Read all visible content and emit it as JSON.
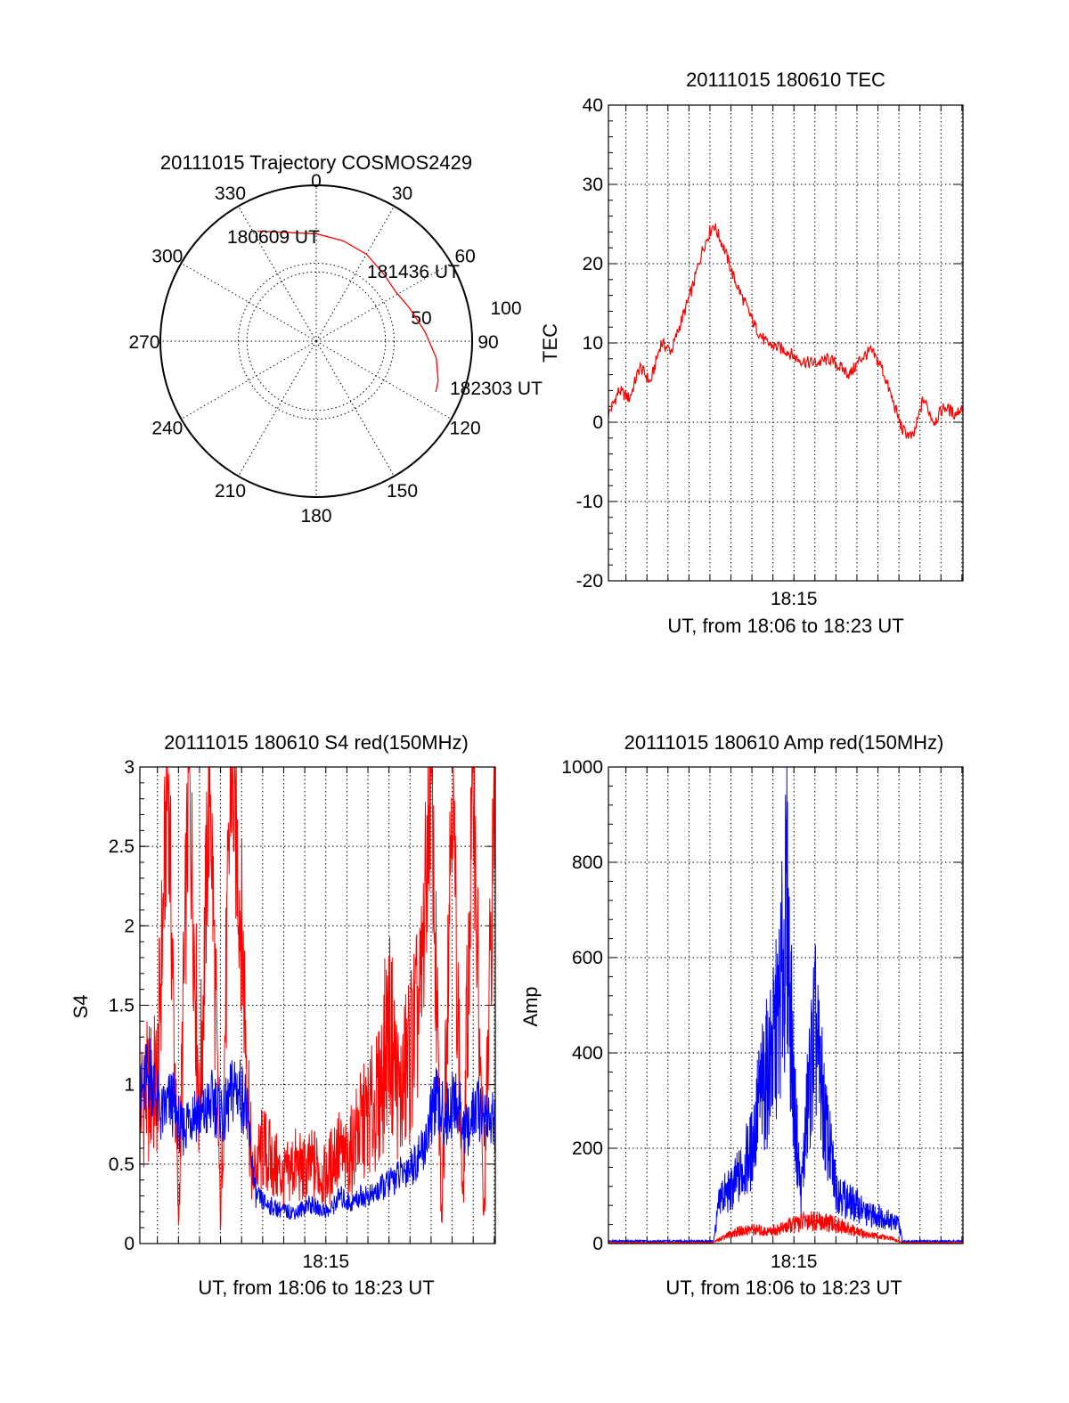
{
  "chart_data": [
    {
      "id": "trajectory",
      "type": "polar",
      "title": "20111015 Trajectory COSMOS2429",
      "azimuth_labels": [
        "0",
        "30",
        "60",
        "90",
        "120",
        "150",
        "180",
        "210",
        "240",
        "270",
        "300",
        "330"
      ],
      "radial_labels": [
        "50",
        "100"
      ],
      "elevation_rings": [
        50
      ],
      "trajectory_color": "#ff0000",
      "annotations": [
        {
          "text": "180609 UT",
          "az": 330,
          "el": 20
        },
        {
          "text": "181436 UT",
          "az": 45,
          "el": 38
        },
        {
          "text": "182303 UT",
          "az": 112,
          "el": 15
        }
      ],
      "trajectory": [
        [
          332,
          18
        ],
        [
          345,
          25
        ],
        [
          0,
          28
        ],
        [
          15,
          30
        ],
        [
          30,
          32
        ],
        [
          45,
          35
        ],
        [
          58,
          36
        ],
        [
          70,
          33
        ],
        [
          85,
          27
        ],
        [
          98,
          20
        ],
        [
          108,
          16
        ],
        [
          113,
          15
        ]
      ]
    },
    {
      "id": "tec",
      "type": "line",
      "title": "20111015 180610 TEC",
      "xlabel": "UT, from 18:06 to 18:23 UT",
      "ylabel": "TEC",
      "xlim": [
        "18:06:10",
        "18:23:03"
      ],
      "ylim": [
        -20,
        40
      ],
      "yticks": [
        "-20",
        "-10",
        "0",
        "10",
        "20",
        "30",
        "40"
      ],
      "xtick_labels": [
        {
          "t": "18:15:00",
          "label": "18:15"
        }
      ],
      "series": [
        {
          "color": "#ff0000",
          "x": [
            "18:06:10",
            "18:06:40",
            "18:07:10",
            "18:07:40",
            "18:08:10",
            "18:08:40",
            "18:09:10",
            "18:09:40",
            "18:10:10",
            "18:10:40",
            "18:11:10",
            "18:11:40",
            "18:12:10",
            "18:12:40",
            "18:13:10",
            "18:13:40",
            "18:14:10",
            "18:14:40",
            "18:15:10",
            "18:15:40",
            "18:16:10",
            "18:16:40",
            "18:17:10",
            "18:17:40",
            "18:18:10",
            "18:18:40",
            "18:19:10",
            "18:19:40",
            "18:20:10",
            "18:20:40",
            "18:21:10",
            "18:21:40",
            "18:22:10",
            "18:22:40",
            "18:23:03"
          ],
          "y": [
            1,
            4,
            3,
            7,
            5,
            10,
            9,
            13,
            17,
            22,
            25,
            22,
            18,
            15,
            12,
            10,
            9.5,
            9,
            8,
            7.5,
            7.5,
            8,
            7,
            6,
            8,
            9,
            7,
            3,
            -1,
            -2,
            3,
            0,
            2,
            1,
            2
          ]
        }
      ]
    },
    {
      "id": "s4",
      "type": "line",
      "title": "20111015 180610 S4 red(150MHz)",
      "xlabel": "UT, from 18:06 to 18:23 UT",
      "ylabel": "S4",
      "xlim": [
        "18:06:10",
        "18:23:03"
      ],
      "ylim": [
        0,
        3
      ],
      "yticks": [
        "0",
        "0.5",
        "1",
        "1.5",
        "2",
        "2.5",
        "3"
      ],
      "xtick_labels": [
        {
          "t": "18:15:00",
          "label": "18:15"
        }
      ],
      "series": [
        {
          "color": "#ff0000",
          "x": [
            "18:06:10",
            "18:07:00",
            "18:07:30",
            "18:08:00",
            "18:08:30",
            "18:09:00",
            "18:09:30",
            "18:10:00",
            "18:10:30",
            "18:11:00",
            "18:11:30",
            "18:12:00",
            "18:12:30",
            "18:13:00",
            "18:13:30",
            "18:14:00",
            "18:14:30",
            "18:15:00",
            "18:15:30",
            "18:16:00",
            "18:16:30",
            "18:17:00",
            "18:17:30",
            "18:18:00",
            "18:18:30",
            "18:19:00",
            "18:19:30",
            "18:20:00",
            "18:20:30",
            "18:21:00",
            "18:21:30",
            "18:22:00",
            "18:22:30",
            "18:23:03"
          ],
          "y": [
            0.9,
            1.0,
            3.0,
            0.1,
            3.0,
            0.8,
            3.0,
            0.1,
            3.0,
            2.0,
            0.4,
            0.6,
            0.5,
            0.4,
            0.5,
            0.45,
            0.5,
            0.4,
            0.6,
            0.5,
            0.7,
            0.8,
            0.9,
            1.4,
            0.9,
            1.2,
            1.5,
            3.0,
            0.1,
            3.0,
            0.2,
            3.0,
            0.1,
            3.0
          ]
        },
        {
          "color": "#0000ff",
          "x": [
            "18:06:10",
            "18:06:40",
            "18:07:10",
            "18:07:40",
            "18:08:10",
            "18:08:40",
            "18:09:10",
            "18:09:40",
            "18:10:10",
            "18:10:40",
            "18:11:10",
            "18:11:40",
            "18:12:10",
            "18:12:40",
            "18:13:10",
            "18:13:40",
            "18:14:10",
            "18:14:40",
            "18:15:10",
            "18:15:40",
            "18:16:10",
            "18:16:40",
            "18:17:10",
            "18:17:40",
            "18:18:10",
            "18:18:40",
            "18:19:10",
            "18:19:40",
            "18:20:10",
            "18:20:40",
            "18:21:10",
            "18:21:40",
            "18:22:10",
            "18:22:40",
            "18:23:03"
          ],
          "y": [
            0.9,
            1.1,
            0.8,
            0.9,
            0.7,
            0.85,
            0.8,
            0.9,
            0.8,
            1.0,
            0.9,
            0.3,
            0.25,
            0.22,
            0.2,
            0.2,
            0.25,
            0.22,
            0.2,
            0.3,
            0.25,
            0.3,
            0.3,
            0.35,
            0.4,
            0.45,
            0.5,
            0.6,
            0.9,
            0.8,
            0.9,
            0.7,
            0.85,
            0.8,
            0.75
          ]
        }
      ]
    },
    {
      "id": "amp",
      "type": "line",
      "title": "20111015 180610 Amp red(150MHz)",
      "xlabel": "UT, from 18:06 to 18:23 UT",
      "ylabel": "Amp",
      "xlim": [
        "18:06:10",
        "18:23:03"
      ],
      "ylim": [
        0,
        1000
      ],
      "yticks": [
        "0",
        "200",
        "400",
        "600",
        "800",
        "1000"
      ],
      "xtick_labels": [
        {
          "t": "18:15:00",
          "label": "18:15"
        }
      ],
      "series": [
        {
          "color": "#0000ff",
          "x": [
            "18:06:10",
            "18:09:00",
            "18:11:10",
            "18:11:30",
            "18:12:00",
            "18:12:30",
            "18:13:00",
            "18:13:20",
            "18:13:40",
            "18:14:00",
            "18:14:20",
            "18:14:40",
            "18:15:00",
            "18:15:20",
            "18:15:40",
            "18:16:00",
            "18:16:30",
            "18:17:00",
            "18:17:30",
            "18:18:00",
            "18:18:30",
            "18:19:00",
            "18:19:30",
            "18:20:00",
            "18:20:10",
            "18:21:00",
            "18:23:03"
          ],
          "y": [
            5,
            5,
            5,
            100,
            110,
            150,
            200,
            300,
            350,
            400,
            500,
            700,
            300,
            100,
            300,
            450,
            250,
            120,
            90,
            80,
            60,
            60,
            50,
            40,
            5,
            5,
            5
          ]
        },
        {
          "color": "#ff0000",
          "x": [
            "18:06:10",
            "18:11:10",
            "18:11:40",
            "18:12:20",
            "18:13:00",
            "18:13:40",
            "18:14:20",
            "18:15:00",
            "18:15:40",
            "18:16:20",
            "18:17:00",
            "18:17:40",
            "18:18:20",
            "18:19:00",
            "18:19:40",
            "18:20:10",
            "18:23:03"
          ],
          "y": [
            2,
            2,
            15,
            25,
            30,
            25,
            30,
            40,
            50,
            45,
            40,
            30,
            20,
            15,
            10,
            2,
            2
          ]
        }
      ]
    }
  ]
}
